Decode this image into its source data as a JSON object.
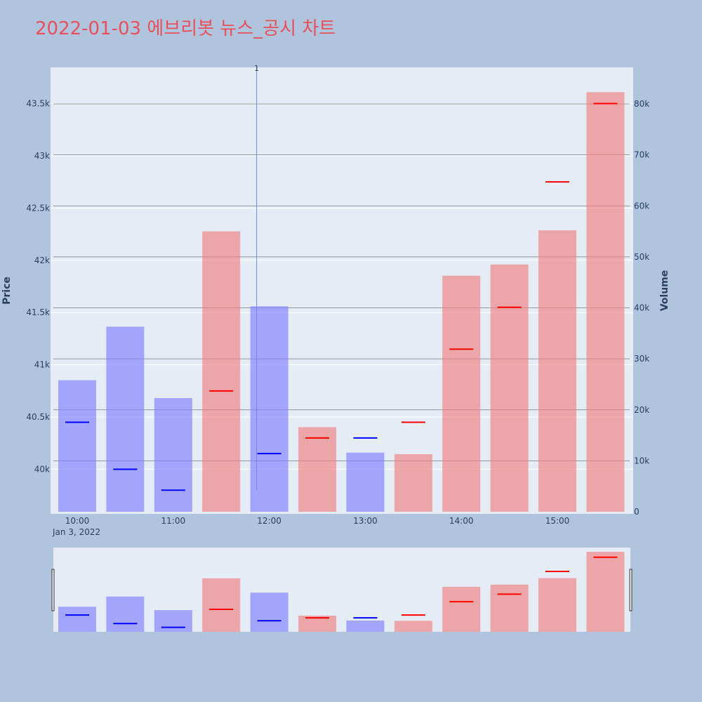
{
  "chart_data": {
    "type": "bar",
    "title": "2022-01-03 에브리봇 뉴스_공시 차트",
    "y_left_label": "Price",
    "y_right_label": "Volume",
    "x_date_label": "Jan 3, 2022",
    "x_ticks": [
      "10:00",
      "11:00",
      "12:00",
      "13:00",
      "14:00",
      "15:00"
    ],
    "price_ticks": [
      {
        "value": 40000,
        "label": "40k"
      },
      {
        "value": 40500,
        "label": "40.5k"
      },
      {
        "value": 41000,
        "label": "41k"
      },
      {
        "value": 41500,
        "label": "41.5k"
      },
      {
        "value": 42000,
        "label": "42k"
      },
      {
        "value": 42500,
        "label": "42.5k"
      },
      {
        "value": 43000,
        "label": "43k"
      },
      {
        "value": 43500,
        "label": "43.5k"
      }
    ],
    "volume_ticks": [
      {
        "value": 0,
        "label": "0"
      },
      {
        "value": 10000,
        "label": "10k"
      },
      {
        "value": 20000,
        "label": "20k"
      },
      {
        "value": 30000,
        "label": "30k"
      },
      {
        "value": 40000,
        "label": "40k"
      },
      {
        "value": 50000,
        "label": "50k"
      },
      {
        "value": 60000,
        "label": "60k"
      },
      {
        "value": 70000,
        "label": "70k"
      },
      {
        "value": 80000,
        "label": "80k"
      }
    ],
    "price_range": [
      39580,
      43960
    ],
    "volume_range": [
      0,
      87000
    ],
    "categories": [
      "10:00",
      "10:30",
      "11:00",
      "11:30",
      "12:00",
      "12:30",
      "13:00",
      "13:30",
      "14:00",
      "14:30",
      "15:00",
      "15:30"
    ],
    "volume": [
      25800,
      36300,
      22300,
      55000,
      40300,
      16600,
      11600,
      11300,
      46300,
      48500,
      55200,
      82300
    ],
    "price": [
      40450,
      40000,
      39800,
      40750,
      40150,
      40300,
      40300,
      40450,
      41150,
      41550,
      42750,
      43500
    ],
    "direction": [
      "down",
      "down",
      "down",
      "up",
      "down",
      "up",
      "down",
      "up",
      "up",
      "up",
      "up",
      "up"
    ],
    "annotation": {
      "label": "1",
      "category": "12:00",
      "price_low": 39800
    },
    "colors": {
      "up_bar": "#f08080",
      "down_bar": "#8080ff",
      "up_line": "#ff0000",
      "down_line": "#0000ff",
      "plot_bg": "#e5ecf6",
      "background": "#b0c4de",
      "title": "#e8505b",
      "annotation_line": "#6a8ae8"
    }
  }
}
